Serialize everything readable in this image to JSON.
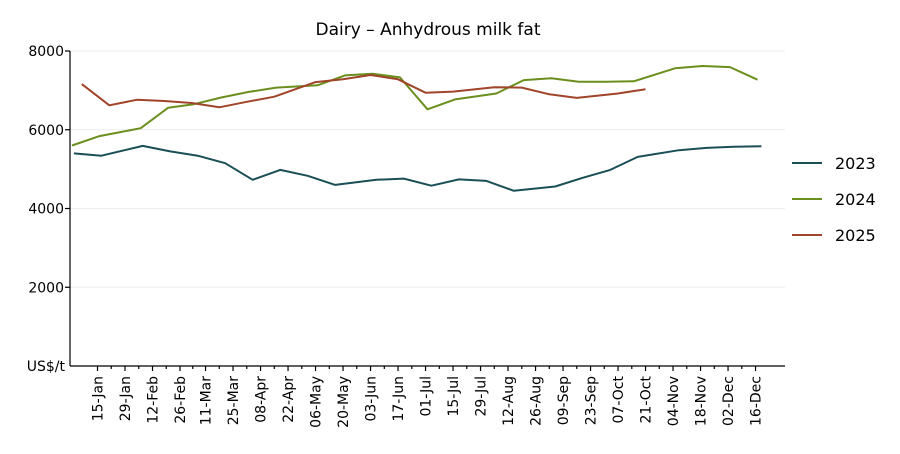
{
  "chart_data": {
    "type": "line",
    "title": "Dairy – Anhydrous milk fat",
    "ylabel": "US$/t",
    "xlabel": "",
    "ylim": [
      0,
      8000
    ],
    "yticks": [
      2000,
      4000,
      6000,
      8000
    ],
    "grid": true,
    "legend_position": "right",
    "categories": [
      "15-Jan",
      "29-Jan",
      "12-Feb",
      "26-Feb",
      "11-Mar",
      "25-Mar",
      "08-Apr",
      "22-Apr",
      "06-May",
      "20-May",
      "03-Jun",
      "17-Jun",
      "01-Jul",
      "15-Jul",
      "29-Jul",
      "12-Aug",
      "26-Aug",
      "09-Sep",
      "23-Sep",
      "07-Oct",
      "21-Oct",
      "04-Nov",
      "18-Nov",
      "02-Dec",
      "16-Dec"
    ],
    "series": [
      {
        "name": "2023",
        "color": "#1a4f57",
        "points": [
          [
            "03-Jan",
            5400
          ],
          [
            "17-Jan",
            5340
          ],
          [
            "07-Feb",
            5590
          ],
          [
            "21-Feb",
            5450
          ],
          [
            "07-Mar",
            5340
          ],
          [
            "21-Mar",
            5150
          ],
          [
            "04-Apr",
            4730
          ],
          [
            "18-Apr",
            4980
          ],
          [
            "02-May",
            4830
          ],
          [
            "16-May",
            4600
          ],
          [
            "06-Jun",
            4730
          ],
          [
            "20-Jun",
            4760
          ],
          [
            "04-Jul",
            4580
          ],
          [
            "18-Jul",
            4740
          ],
          [
            "01-Aug",
            4700
          ],
          [
            "15-Aug",
            4450
          ],
          [
            "05-Sep",
            4560
          ],
          [
            "19-Sep",
            4780
          ],
          [
            "03-Oct",
            4980
          ],
          [
            "17-Oct",
            5310
          ],
          [
            "07-Nov",
            5480
          ],
          [
            "21-Nov",
            5540
          ],
          [
            "05-Dec",
            5570
          ],
          [
            "19-Dec",
            5580
          ]
        ]
      },
      {
        "name": "2024",
        "color": "#6a8f1e",
        "points": [
          [
            "02-Jan",
            5600
          ],
          [
            "16-Jan",
            5840
          ],
          [
            "06-Feb",
            6040
          ],
          [
            "20-Feb",
            6560
          ],
          [
            "05-Mar",
            6650
          ],
          [
            "19-Mar",
            6820
          ],
          [
            "02-Apr",
            6960
          ],
          [
            "16-Apr",
            7070
          ],
          [
            "07-May",
            7130
          ],
          [
            "21-May",
            7380
          ],
          [
            "04-Jun",
            7420
          ],
          [
            "18-Jun",
            7330
          ],
          [
            "02-Jul",
            6520
          ],
          [
            "16-Jul",
            6770
          ],
          [
            "06-Aug",
            6920
          ],
          [
            "20-Aug",
            7260
          ],
          [
            "03-Sep",
            7310
          ],
          [
            "17-Sep",
            7220
          ],
          [
            "01-Oct",
            7220
          ],
          [
            "15-Oct",
            7230
          ],
          [
            "05-Nov",
            7560
          ],
          [
            "19-Nov",
            7620
          ],
          [
            "03-Dec",
            7590
          ],
          [
            "17-Dec",
            7270
          ]
        ]
      },
      {
        "name": "2025",
        "color": "#a0442a",
        "points": [
          [
            "07-Jan",
            7160
          ],
          [
            "21-Jan",
            6620
          ],
          [
            "04-Feb",
            6760
          ],
          [
            "18-Feb",
            6730
          ],
          [
            "04-Mar",
            6680
          ],
          [
            "18-Mar",
            6570
          ],
          [
            "01-Apr",
            6710
          ],
          [
            "15-Apr",
            6840
          ],
          [
            "06-May",
            7210
          ],
          [
            "20-May",
            7280
          ],
          [
            "03-Jun",
            7390
          ],
          [
            "17-Jun",
            7280
          ],
          [
            "01-Jul",
            6940
          ],
          [
            "15-Jul",
            6970
          ],
          [
            "05-Aug",
            7080
          ],
          [
            "19-Aug",
            7070
          ],
          [
            "02-Sep",
            6900
          ],
          [
            "16-Sep",
            6810
          ],
          [
            "07-Oct",
            6920
          ],
          [
            "21-Oct",
            7030
          ]
        ]
      }
    ]
  }
}
